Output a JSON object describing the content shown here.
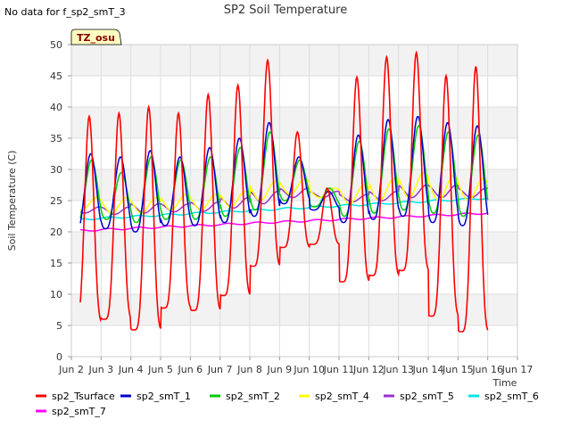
{
  "header": {
    "no_data_note": "No data for f_sp2_smT_3"
  },
  "timezone_badge": "TZ_osu",
  "chart_data": {
    "type": "line",
    "title": "SP2 Soil Temperature",
    "xlabel": "Time",
    "ylabel": "Soil Temperature (C)",
    "xlim": [
      2,
      17
    ],
    "ylim": [
      0,
      50
    ],
    "x_ticks": [
      2,
      3,
      4,
      5,
      6,
      7,
      8,
      9,
      10,
      11,
      12,
      13,
      14,
      15,
      16,
      17
    ],
    "x_tick_labels": [
      "Jun 2",
      "Jun 3",
      "Jun 4",
      "Jun 5",
      "Jun 6",
      "Jun 7",
      "Jun 8",
      "Jun 9",
      "Jun 10",
      "Jun 11",
      "Jun 12",
      "Jun 13",
      "Jun 14",
      "Jun 15",
      "Jun 16",
      "Jun 17"
    ],
    "y_ticks": [
      0,
      5,
      10,
      15,
      20,
      25,
      30,
      35,
      40,
      45,
      50
    ],
    "y_tick_labels": [
      "0",
      "5",
      "10",
      "15",
      "20",
      "25",
      "30",
      "35",
      "40",
      "45",
      "50"
    ],
    "grid": true,
    "legend_position": "bottom",
    "days": [
      2,
      3,
      4,
      5,
      6,
      7,
      8,
      9,
      10,
      11,
      12,
      13,
      14,
      15,
      16
    ],
    "series": [
      {
        "name": "sp2_Tsurface",
        "color": "#ff0000",
        "day_min": [
          5.5,
          6.0,
          4.3,
          7.8,
          7.4,
          9.8,
          14.5,
          17.5,
          18.0,
          12.0,
          13.0,
          13.8,
          6.5,
          4.0
        ],
        "day_max": [
          38.5,
          39.0,
          40.0,
          39.0,
          42.0,
          43.5,
          47.5,
          36.0,
          27.0,
          44.8,
          48.0,
          48.7,
          45.0,
          46.5
        ]
      },
      {
        "name": "sp2_smT_1",
        "color": "#0000cc",
        "day_min": [
          20.0,
          20.5,
          20.0,
          21.0,
          21.0,
          21.5,
          22.5,
          24.5,
          23.5,
          21.5,
          22.0,
          22.5,
          21.5,
          21.0
        ],
        "day_max": [
          32.5,
          32.0,
          33.0,
          32.0,
          33.5,
          35.0,
          37.5,
          32.0,
          26.5,
          35.5,
          38.0,
          38.5,
          37.5,
          37.0
        ]
      },
      {
        "name": "sp2_smT_2",
        "color": "#00cc00",
        "day_min": [
          21.5,
          22.0,
          21.5,
          22.0,
          22.0,
          22.5,
          23.5,
          25.0,
          24.0,
          22.5,
          23.0,
          23.5,
          23.0,
          22.5
        ],
        "day_max": [
          31.5,
          29.5,
          32.0,
          31.5,
          32.0,
          33.5,
          36.0,
          31.5,
          27.0,
          34.5,
          36.5,
          37.0,
          36.0,
          35.5
        ]
      },
      {
        "name": "sp2_smT_4",
        "color": "#ffff00",
        "day_min": [
          23.5,
          23.0,
          23.0,
          23.5,
          23.5,
          24.0,
          25.0,
          26.0,
          25.5,
          24.5,
          25.0,
          25.5,
          25.0,
          25.0
        ],
        "day_max": [
          25.5,
          25.5,
          25.5,
          26.0,
          26.0,
          26.5,
          28.0,
          28.5,
          27.0,
          27.5,
          28.5,
          29.5,
          29.0,
          28.5
        ]
      },
      {
        "name": "sp2_smT_5",
        "color": "#9933cc",
        "day_min": [
          23.0,
          22.8,
          23.0,
          23.2,
          23.3,
          23.8,
          24.5,
          25.5,
          25.5,
          24.8,
          25.0,
          25.5,
          25.5,
          25.5
        ],
        "day_max": [
          24.0,
          24.0,
          24.5,
          24.5,
          24.8,
          25.5,
          26.5,
          27.0,
          26.5,
          26.0,
          26.5,
          27.5,
          27.5,
          27.0
        ]
      },
      {
        "name": "sp2_smT_6",
        "color": "#00e5e5",
        "start": 22.0,
        "end": 25.4
      },
      {
        "name": "sp2_smT_7",
        "color": "#ff00ff",
        "start": 20.2,
        "end": 23.0
      }
    ]
  }
}
